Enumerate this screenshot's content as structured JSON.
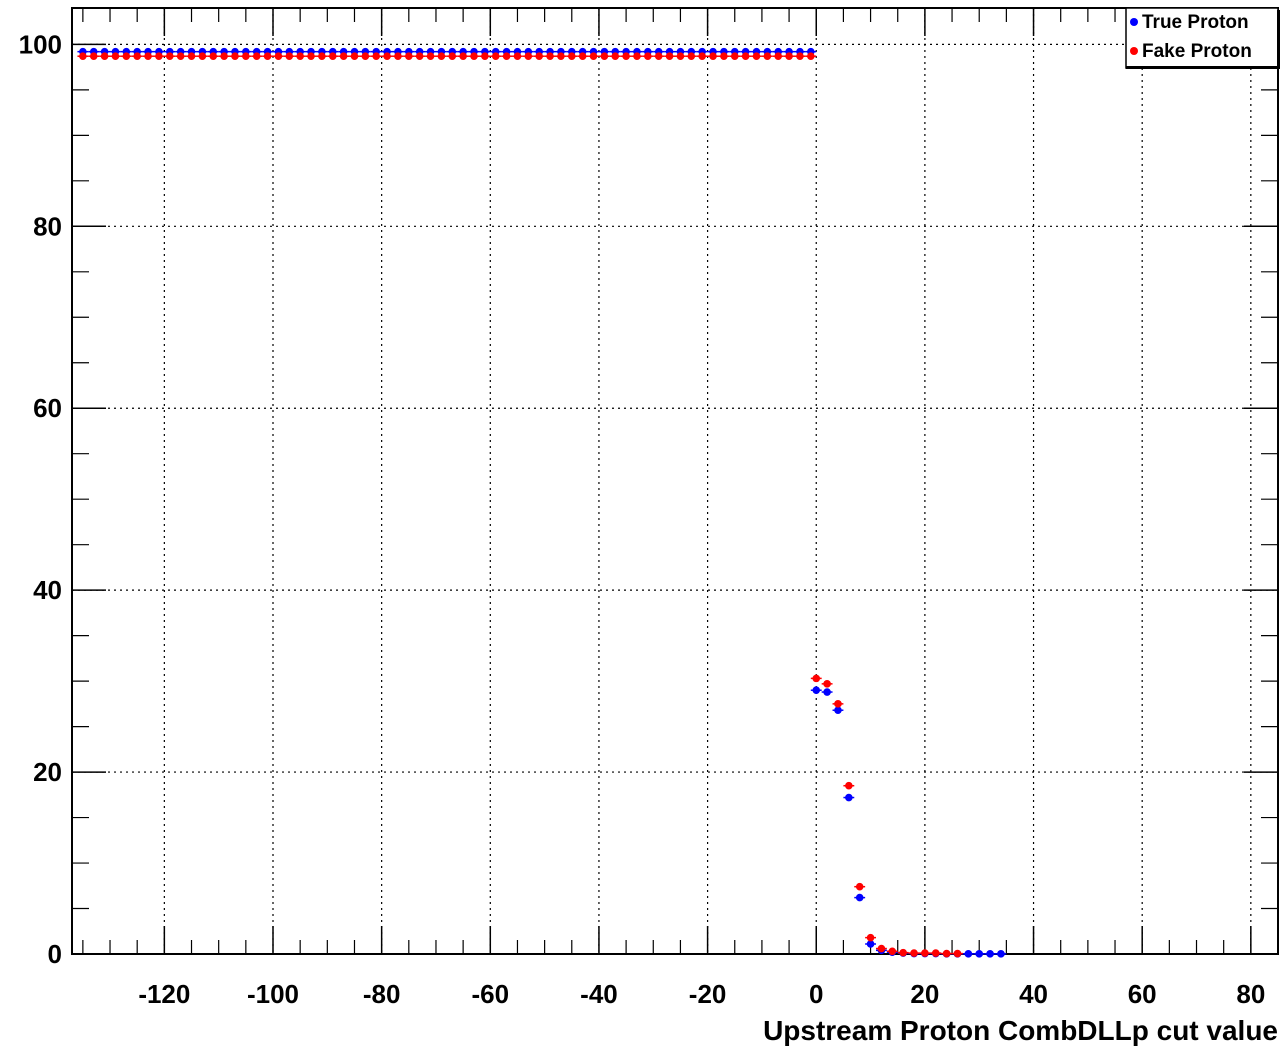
{
  "chart_data": {
    "type": "scatter",
    "title": "",
    "xlabel": "Upstream Proton CombDLLp cut value",
    "ylabel": "",
    "xlim": [
      -137,
      85
    ],
    "ylim": [
      0,
      104
    ],
    "xticks": [
      -120,
      -100,
      -80,
      -60,
      -40,
      -20,
      0,
      20,
      40,
      60,
      80
    ],
    "yticks": [
      0,
      20,
      40,
      60,
      80,
      100
    ],
    "x_tick_labels": [
      "-120",
      "-100",
      "-80",
      "-60",
      "-40",
      "-20",
      "0",
      "20",
      "40",
      "60",
      "80"
    ],
    "y_tick_labels": [
      "0",
      "20",
      "40",
      "60",
      "80",
      "100"
    ],
    "grid": true,
    "legend_position": "top-right",
    "plateau": {
      "x_start": -135,
      "x_end": -1,
      "step": 2
    },
    "series": [
      {
        "name": "True Proton",
        "color": "#0000ff",
        "plateau_value": 99.2,
        "points": [
          [
            0,
            29.0
          ],
          [
            2,
            28.8
          ],
          [
            4,
            26.8
          ],
          [
            6,
            17.2
          ],
          [
            8,
            6.2
          ],
          [
            10,
            1.1
          ],
          [
            12,
            0.4
          ],
          [
            14,
            0.2
          ],
          [
            16,
            0.1
          ],
          [
            18,
            0.05
          ],
          [
            20,
            0.05
          ],
          [
            22,
            0.05
          ],
          [
            24,
            0.02
          ],
          [
            26,
            0.02
          ],
          [
            28,
            0.02
          ],
          [
            30,
            0.02
          ],
          [
            32,
            0.02
          ],
          [
            34,
            0.02
          ]
        ]
      },
      {
        "name": "Fake Proton",
        "color": "#ff0000",
        "plateau_value": 98.7,
        "points": [
          [
            0,
            30.3
          ],
          [
            2,
            29.7
          ],
          [
            4,
            27.5
          ],
          [
            6,
            18.5
          ],
          [
            8,
            7.4
          ],
          [
            10,
            1.8
          ],
          [
            12,
            0.6
          ],
          [
            14,
            0.3
          ],
          [
            16,
            0.15
          ],
          [
            18,
            0.1
          ],
          [
            20,
            0.1
          ],
          [
            22,
            0.1
          ],
          [
            24,
            0.05
          ],
          [
            26,
            0.05
          ]
        ]
      }
    ]
  }
}
